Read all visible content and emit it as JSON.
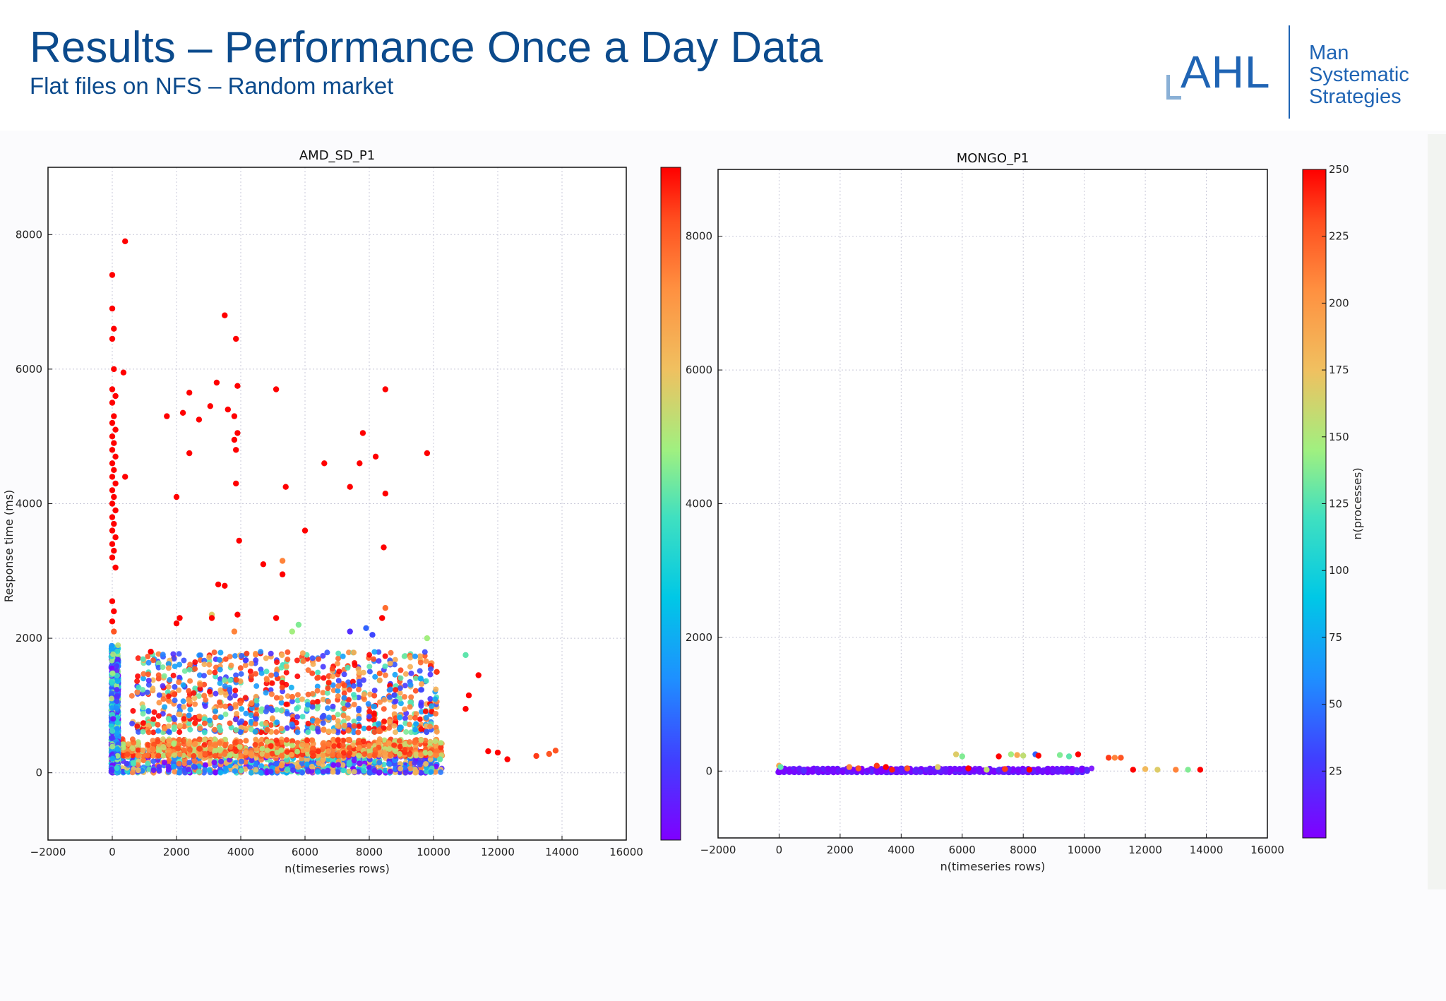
{
  "header": {
    "title": "Results – Performance Once a Day Data",
    "subtitle": "Flat files on NFS – Random market"
  },
  "logo": {
    "ahl": "AHL",
    "lines": [
      "Man",
      "Systematic",
      "Strategies"
    ]
  },
  "colors": {
    "title_blue": "#0b4a8c",
    "logo_blue": "#1f64b4",
    "colormap": [
      "#7f00ff",
      "#4040ff",
      "#1e90ff",
      "#00c8e6",
      "#40e0c0",
      "#a0f080",
      "#f0c060",
      "#ff9040",
      "#ff5020",
      "#ff0000"
    ]
  },
  "chart_data": [
    {
      "type": "scatter",
      "title": "AMD_SD_P1",
      "xlabel": "n(timeseries rows)",
      "ylabel": "Response time (ms)",
      "xlim": [
        -2000,
        16000
      ],
      "ylim": [
        -1000,
        9000
      ],
      "xticks": [
        -2000,
        0,
        2000,
        4000,
        6000,
        8000,
        10000,
        12000,
        14000,
        16000
      ],
      "yticks": [
        0,
        2000,
        4000,
        6000,
        8000
      ],
      "grid": true,
      "points": [
        [
          0,
          7400,
          250
        ],
        [
          0,
          6900,
          250
        ],
        [
          50,
          6600,
          250
        ],
        [
          0,
          6450,
          250
        ],
        [
          50,
          6000,
          250
        ],
        [
          0,
          5700,
          250
        ],
        [
          100,
          5600,
          250
        ],
        [
          0,
          5500,
          250
        ],
        [
          50,
          5300,
          250
        ],
        [
          0,
          5200,
          250
        ],
        [
          100,
          5100,
          250
        ],
        [
          0,
          5000,
          250
        ],
        [
          50,
          4900,
          250
        ],
        [
          0,
          4800,
          250
        ],
        [
          100,
          4700,
          250
        ],
        [
          0,
          4600,
          250
        ],
        [
          50,
          4500,
          250
        ],
        [
          0,
          4400,
          250
        ],
        [
          100,
          4300,
          250
        ],
        [
          0,
          4200,
          250
        ],
        [
          50,
          4100,
          250
        ],
        [
          0,
          4000,
          250
        ],
        [
          100,
          3900,
          250
        ],
        [
          0,
          3800,
          250
        ],
        [
          50,
          3700,
          250
        ],
        [
          0,
          3600,
          250
        ],
        [
          100,
          3500,
          250
        ],
        [
          0,
          3400,
          250
        ],
        [
          50,
          3300,
          250
        ],
        [
          0,
          3200,
          250
        ],
        [
          100,
          3050,
          250
        ],
        [
          0,
          2550,
          250
        ],
        [
          50,
          2400,
          250
        ],
        [
          0,
          2250,
          250
        ],
        [
          50,
          2100,
          220
        ],
        [
          400,
          7900,
          250
        ],
        [
          350,
          5950,
          250
        ],
        [
          400,
          4400,
          250
        ],
        [
          3500,
          6800,
          250
        ],
        [
          3850,
          6450,
          250
        ],
        [
          3250,
          5800,
          250
        ],
        [
          5100,
          5700,
          250
        ],
        [
          8500,
          5700,
          250
        ],
        [
          3900,
          5750,
          250
        ],
        [
          2400,
          5650,
          250
        ],
        [
          1700,
          5300,
          250
        ],
        [
          2200,
          5350,
          250
        ],
        [
          2700,
          5250,
          250
        ],
        [
          3050,
          5450,
          250
        ],
        [
          3600,
          5400,
          250
        ],
        [
          3800,
          5300,
          250
        ],
        [
          3900,
          5050,
          250
        ],
        [
          3800,
          4950,
          250
        ],
        [
          3850,
          4800,
          250
        ],
        [
          2400,
          4750,
          250
        ],
        [
          7800,
          5050,
          250
        ],
        [
          7700,
          4600,
          250
        ],
        [
          8200,
          4700,
          250
        ],
        [
          9800,
          4750,
          250
        ],
        [
          6600,
          4600,
          250
        ],
        [
          7400,
          4250,
          250
        ],
        [
          5400,
          4250,
          250
        ],
        [
          8500,
          4150,
          250
        ],
        [
          2000,
          4100,
          250
        ],
        [
          3850,
          4300,
          250
        ],
        [
          6000,
          3600,
          250
        ],
        [
          3950,
          3450,
          250
        ],
        [
          8450,
          3350,
          250
        ],
        [
          5300,
          3150,
          200
        ],
        [
          4700,
          3100,
          250
        ],
        [
          5300,
          2950,
          250
        ],
        [
          3300,
          2800,
          250
        ],
        [
          3500,
          2780,
          250
        ],
        [
          8500,
          2450,
          210
        ],
        [
          8400,
          2300,
          250
        ],
        [
          3900,
          2350,
          250
        ],
        [
          3100,
          2350,
          160
        ],
        [
          3100,
          2300,
          250
        ],
        [
          2100,
          2300,
          250
        ],
        [
          2000,
          2220,
          250
        ],
        [
          5100,
          2300,
          250
        ],
        [
          5800,
          2200,
          130
        ],
        [
          5600,
          2100,
          140
        ],
        [
          3800,
          2100,
          200
        ],
        [
          7400,
          2100,
          20
        ],
        [
          7900,
          2150,
          40
        ],
        [
          8100,
          2050,
          30
        ],
        [
          9800,
          2000,
          140
        ],
        [
          1200,
          1800,
          250
        ],
        [
          11000,
          1750,
          120
        ],
        [
          11400,
          1450,
          250
        ],
        [
          11100,
          1150,
          250
        ],
        [
          11000,
          950,
          250
        ],
        [
          10100,
          1500,
          230
        ],
        [
          9600,
          1400,
          70
        ],
        [
          12000,
          300,
          250
        ],
        [
          12300,
          200,
          250
        ],
        [
          13200,
          250,
          230
        ],
        [
          13600,
          280,
          220
        ],
        [
          13800,
          330,
          220
        ],
        [
          11700,
          320,
          250
        ],
        [
          10200,
          200,
          120
        ]
      ],
      "dense_bands": [
        {
          "x_range": [
            0,
            10200
          ],
          "y_range": [
            0,
            350
          ],
          "zmix": [
            5,
            25,
            45,
            70,
            110,
            170,
            200
          ]
        },
        {
          "x_range": [
            0,
            10200
          ],
          "y_range": [
            250,
            500
          ],
          "zmix": [
            150,
            190,
            210,
            230
          ]
        },
        {
          "x_range": [
            700,
            10200
          ],
          "y_range": [
            600,
            1800
          ],
          "zmix": [
            30,
            60,
            120,
            180,
            200,
            220,
            250
          ]
        },
        {
          "x_range": [
            0,
            200
          ],
          "y_range": [
            0,
            1900
          ],
          "zmix": [
            10,
            30,
            60,
            100,
            140
          ]
        }
      ]
    },
    {
      "type": "scatter",
      "title": "MONGO_P1",
      "xlabel": "n(timeseries rows)",
      "ylabel": "Response time (ms)",
      "xlim": [
        -2000,
        16000
      ],
      "ylim": [
        -1000,
        9000
      ],
      "xticks": [
        -2000,
        0,
        2000,
        4000,
        6000,
        8000,
        10000,
        12000,
        14000,
        16000
      ],
      "yticks": [
        0,
        2000,
        4000,
        6000,
        8000
      ],
      "grid": true,
      "colorbar": {
        "label": "n(processes)",
        "range": [
          0,
          250
        ],
        "ticks": [
          25,
          50,
          75,
          100,
          125,
          150,
          175,
          200,
          225,
          250
        ]
      },
      "points": [
        [
          5800,
          250,
          160
        ],
        [
          6000,
          220,
          130
        ],
        [
          7200,
          220,
          250
        ],
        [
          7600,
          250,
          140
        ],
        [
          7800,
          240,
          180
        ],
        [
          8000,
          230,
          150
        ],
        [
          8400,
          250,
          40
        ],
        [
          8500,
          230,
          250
        ],
        [
          9200,
          240,
          130
        ],
        [
          9500,
          220,
          120
        ],
        [
          9800,
          250,
          250
        ],
        [
          10800,
          200,
          230
        ],
        [
          11000,
          200,
          200
        ],
        [
          11200,
          200,
          220
        ],
        [
          11600,
          20,
          250
        ],
        [
          12000,
          30,
          170
        ],
        [
          12400,
          20,
          160
        ],
        [
          13000,
          20,
          200
        ],
        [
          13400,
          20,
          130
        ],
        [
          13800,
          20,
          250
        ],
        [
          2300,
          60,
          200
        ],
        [
          2600,
          40,
          220
        ],
        [
          3200,
          80,
          230
        ],
        [
          3500,
          60,
          250
        ],
        [
          4200,
          40,
          220
        ],
        [
          3700,
          20,
          240
        ],
        [
          5200,
          60,
          160
        ],
        [
          6200,
          40,
          250
        ],
        [
          6800,
          20,
          150
        ],
        [
          7400,
          30,
          230
        ],
        [
          8200,
          20,
          250
        ],
        [
          0,
          80,
          180
        ],
        [
          50,
          60,
          120
        ]
      ],
      "dense_bands": [
        {
          "x_range": [
            0,
            10200
          ],
          "y_range": [
            -20,
            40
          ],
          "zmix": [
            2,
            5,
            8,
            10,
            15
          ]
        }
      ]
    }
  ]
}
